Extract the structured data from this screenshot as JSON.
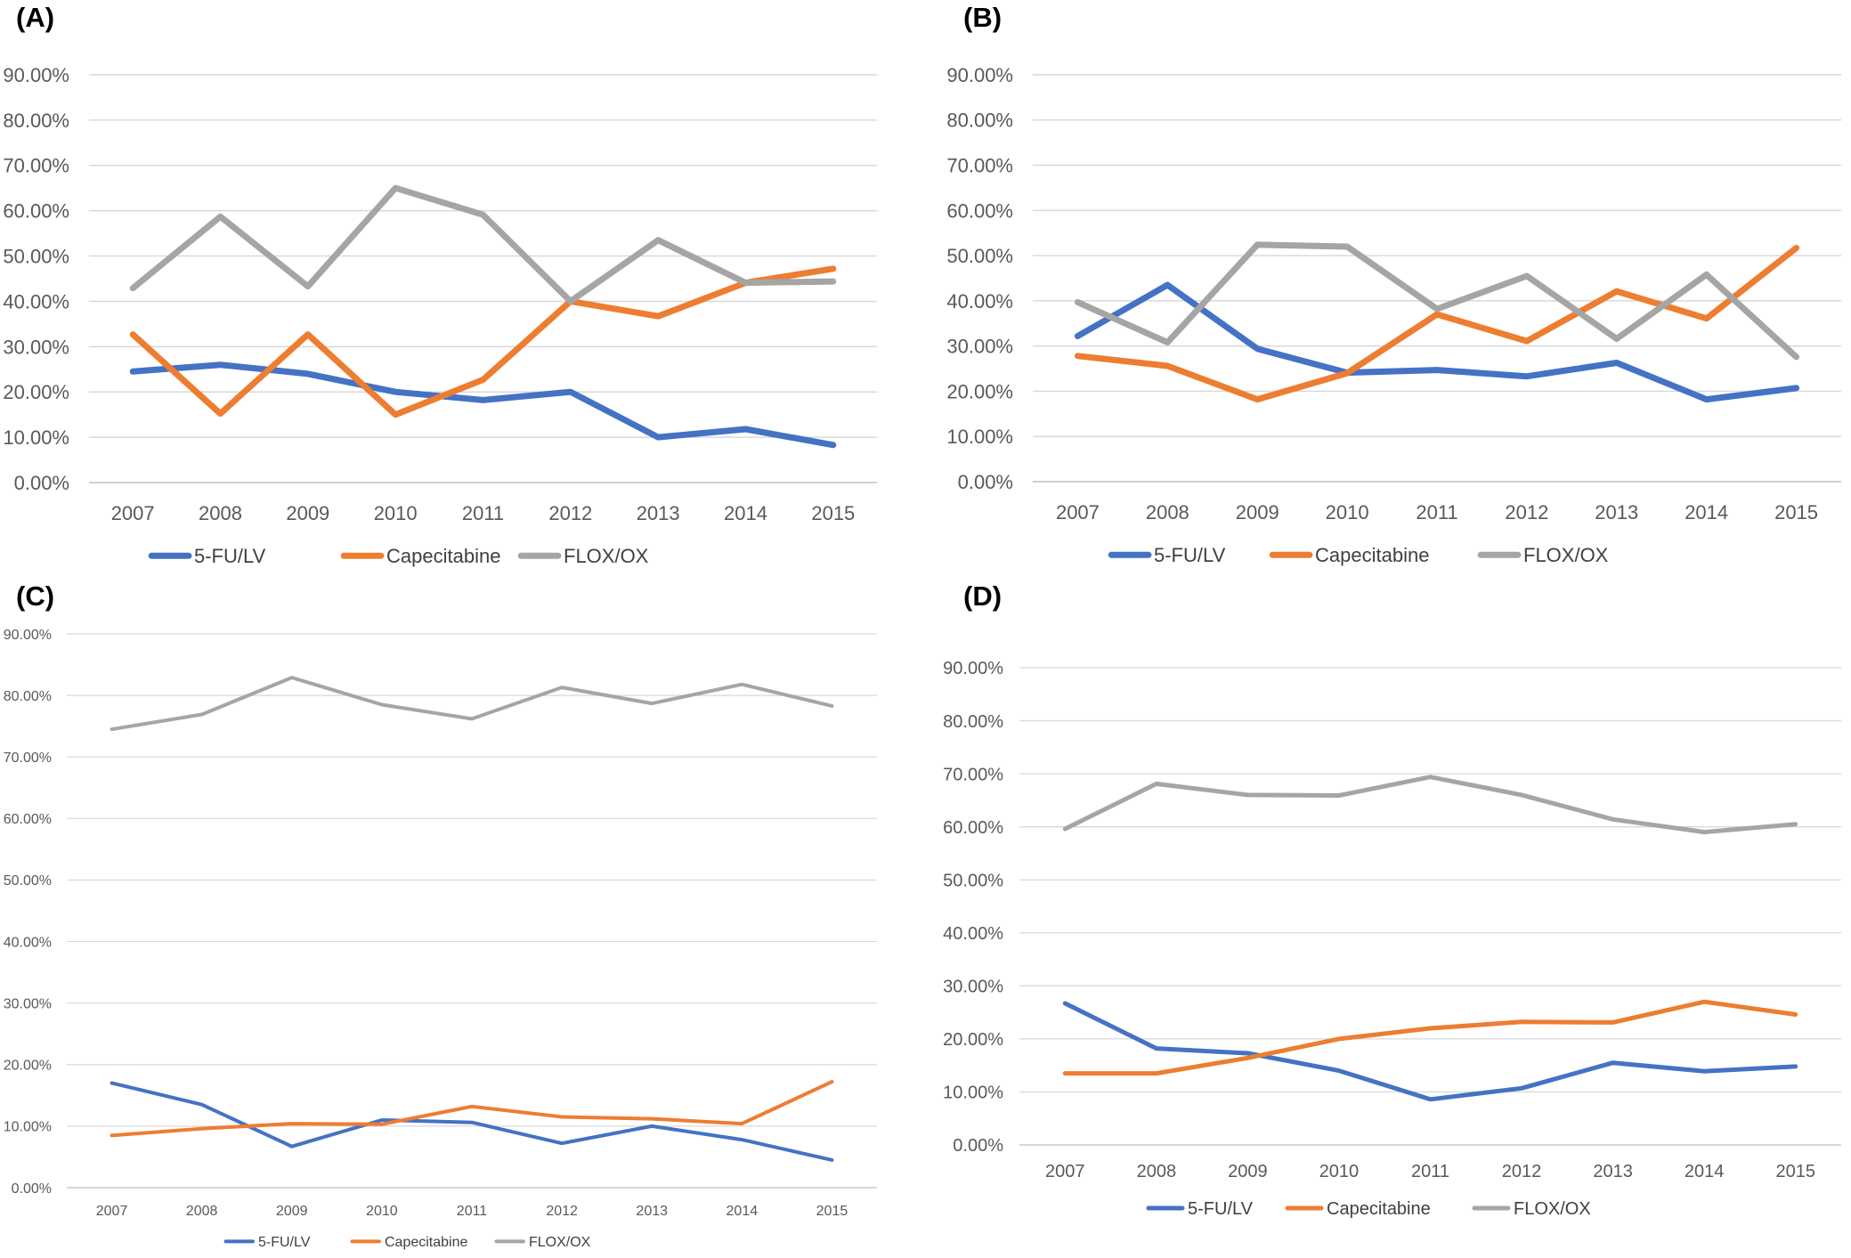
{
  "figure": {
    "panel_labels": [
      "(A)",
      "(B)",
      "(C)",
      "(D)"
    ]
  },
  "chart_data": [
    {
      "type": "line",
      "panel": "(A)",
      "categories": [
        "2007",
        "2008",
        "2009",
        "2010",
        "2011",
        "2012",
        "2013",
        "2014",
        "2015"
      ],
      "yticks": [
        "0.00%",
        "10.00%",
        "20.00%",
        "30.00%",
        "40.00%",
        "50.00%",
        "60.00%",
        "70.00%",
        "80.00%",
        "90.00%"
      ],
      "ylim": [
        0,
        90
      ],
      "grid": true,
      "legend": "bottom",
      "series": [
        {
          "name": "5-FU/LV",
          "color": "#4472C4",
          "values": [
            24.5,
            26.0,
            24.0,
            20.0,
            18.2,
            20.0,
            10.0,
            11.8,
            8.3
          ]
        },
        {
          "name": "Capecitabine",
          "color": "#ED7D31",
          "values": [
            32.7,
            15.2,
            32.7,
            15.0,
            22.7,
            40.0,
            36.7,
            44.1,
            47.2
          ]
        },
        {
          "name": "FLOX/OX",
          "color": "#A5A5A5",
          "values": [
            42.9,
            58.7,
            43.3,
            65.0,
            59.1,
            40.0,
            53.5,
            44.1,
            44.4
          ]
        }
      ]
    },
    {
      "type": "line",
      "panel": "(B)",
      "categories": [
        "2007",
        "2008",
        "2009",
        "2010",
        "2011",
        "2012",
        "2013",
        "2014",
        "2015"
      ],
      "yticks": [
        "0.00%",
        "10.00%",
        "20.00%",
        "30.00%",
        "40.00%",
        "50.00%",
        "60.00%",
        "70.00%",
        "80.00%",
        "90.00%"
      ],
      "ylim": [
        0,
        90
      ],
      "grid": true,
      "legend": "bottom",
      "series": [
        {
          "name": "5-FU/LV",
          "color": "#4472C4",
          "values": [
            32.2,
            43.5,
            29.4,
            24.1,
            24.7,
            23.3,
            26.3,
            18.2,
            20.7
          ]
        },
        {
          "name": "Capecitabine",
          "color": "#ED7D31",
          "values": [
            27.8,
            25.6,
            18.2,
            24.0,
            37.0,
            31.1,
            42.1,
            36.1,
            51.7
          ]
        },
        {
          "name": "FLOX/OX",
          "color": "#A5A5A5",
          "values": [
            39.7,
            30.8,
            52.4,
            52.0,
            38.2,
            45.5,
            31.6,
            45.8,
            27.6
          ]
        }
      ]
    },
    {
      "type": "line",
      "panel": "(C)",
      "categories": [
        "2007",
        "2008",
        "2009",
        "2010",
        "2011",
        "2012",
        "2013",
        "2014",
        "2015"
      ],
      "yticks": [
        "0.00%",
        "10.00%",
        "20.00%",
        "30.00%",
        "40.00%",
        "50.00%",
        "60.00%",
        "70.00%",
        "80.00%",
        "90.00%"
      ],
      "ylim": [
        0,
        90
      ],
      "grid": true,
      "legend": "bottom",
      "series": [
        {
          "name": "5-FU/LV",
          "color": "#4472C4",
          "values": [
            17.0,
            13.5,
            6.7,
            11.0,
            10.6,
            7.2,
            10.0,
            7.8,
            4.5
          ]
        },
        {
          "name": "Capecitabine",
          "color": "#ED7D31",
          "values": [
            8.5,
            9.6,
            10.4,
            10.3,
            13.2,
            11.5,
            11.2,
            10.4,
            17.2
          ]
        },
        {
          "name": "FLOX/OX",
          "color": "#A5A5A5",
          "values": [
            74.5,
            76.9,
            82.9,
            78.5,
            76.2,
            81.3,
            78.7,
            81.8,
            78.3
          ]
        }
      ]
    },
    {
      "type": "line",
      "panel": "(D)",
      "categories": [
        "2007",
        "2008",
        "2009",
        "2010",
        "2011",
        "2012",
        "2013",
        "2014",
        "2015"
      ],
      "yticks": [
        "0.00%",
        "10.00%",
        "20.00%",
        "30.00%",
        "40.00%",
        "50.00%",
        "60.00%",
        "70.00%",
        "80.00%",
        "90.00%"
      ],
      "ylim": [
        0,
        90
      ],
      "grid": true,
      "legend": "bottom",
      "series": [
        {
          "name": "5-FU/LV",
          "color": "#4472C4",
          "values": [
            26.7,
            18.2,
            17.3,
            14.0,
            8.6,
            10.7,
            15.5,
            13.9,
            14.8
          ]
        },
        {
          "name": "Capecitabine",
          "color": "#ED7D31",
          "values": [
            13.5,
            13.5,
            16.4,
            20.0,
            22.0,
            23.2,
            23.1,
            27.0,
            24.6
          ]
        },
        {
          "name": "FLOX/OX",
          "color": "#A5A5A5",
          "values": [
            59.6,
            68.1,
            66.0,
            65.9,
            69.4,
            66.0,
            61.4,
            59.0,
            60.5
          ]
        }
      ]
    }
  ]
}
